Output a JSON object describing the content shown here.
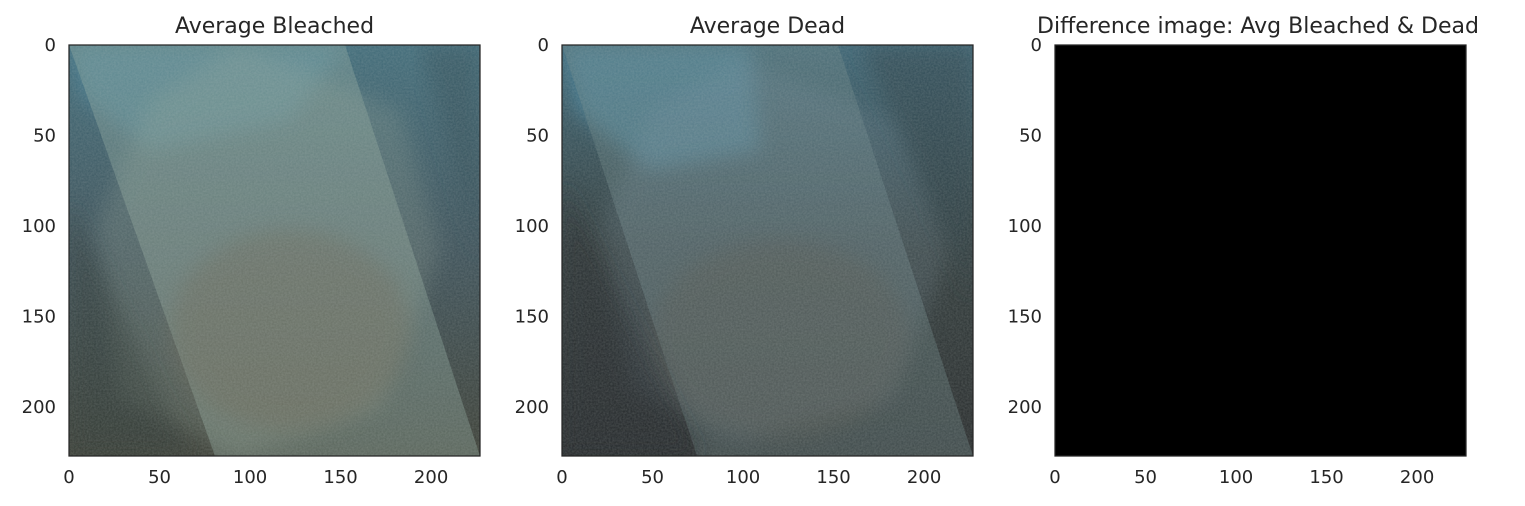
{
  "chart_data": [
    {
      "type": "image",
      "title": "Average Bleached",
      "xlim": [
        0,
        227
      ],
      "ylim": [
        227,
        0
      ],
      "xticks": [
        0,
        50,
        100,
        150,
        200
      ],
      "yticks": [
        0,
        50,
        100,
        150,
        200
      ],
      "xtick_labels": [
        "0",
        "50",
        "100",
        "150",
        "200"
      ],
      "ytick_labels": [
        "0",
        "50",
        "100",
        "150",
        "200"
      ],
      "grid": false,
      "colors": {
        "base": "#3c5058",
        "light": "#8fa89f",
        "warm": "#6c6250",
        "blue": "#4a8aa4",
        "dark": "#2a3630"
      }
    },
    {
      "type": "image",
      "title": "Average Dead",
      "xlim": [
        0,
        227
      ],
      "ylim": [
        227,
        0
      ],
      "xticks": [
        0,
        50,
        100,
        150,
        200
      ],
      "yticks": [
        0,
        50,
        100,
        150,
        200
      ],
      "xtick_labels": [
        "0",
        "50",
        "100",
        "150",
        "200"
      ],
      "ytick_labels": [
        "0",
        "50",
        "100",
        "150",
        "200"
      ],
      "grid": false,
      "colors": {
        "base": "#303a3a",
        "light": "#6c8486",
        "warm": "#57554c",
        "blue": "#4a8eaa",
        "dark": "#22282a"
      }
    },
    {
      "type": "image",
      "title": "Difference image: Avg Bleached & Dead",
      "xlim": [
        0,
        227
      ],
      "ylim": [
        227,
        0
      ],
      "xticks": [
        0,
        50,
        100,
        150,
        200
      ],
      "yticks": [
        0,
        50,
        100,
        150,
        200
      ],
      "xtick_labels": [
        "0",
        "50",
        "100",
        "150",
        "200"
      ],
      "ytick_labels": [
        "0",
        "50",
        "100",
        "150",
        "200"
      ],
      "grid": false,
      "colors": {
        "base": "#000000"
      }
    }
  ]
}
